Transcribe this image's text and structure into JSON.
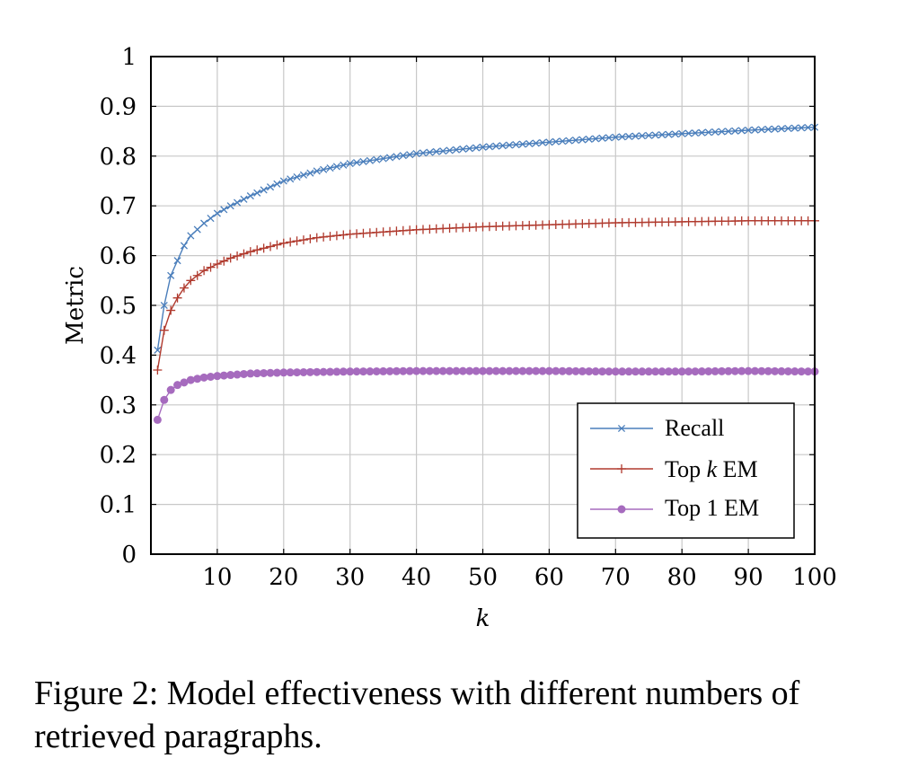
{
  "chart_data": {
    "type": "line",
    "title": "",
    "xlabel": "k",
    "ylabel": "Metric",
    "xlim": [
      0,
      100
    ],
    "ylim": [
      0,
      1
    ],
    "xticks": [
      "10",
      "20",
      "30",
      "40",
      "50",
      "60",
      "70",
      "80",
      "90",
      "100"
    ],
    "yticks": [
      "0",
      "0.1",
      "0.2",
      "0.3",
      "0.4",
      "0.5",
      "0.6",
      "0.7",
      "0.8",
      "0.9",
      "1"
    ],
    "grid": true,
    "legend_position": "bottom-right",
    "series": [
      {
        "name": "Recall",
        "color": "#4a7ebb",
        "marker": "x",
        "x": [
          1,
          2,
          3,
          4,
          5,
          6,
          8,
          10,
          12,
          15,
          20,
          25,
          30,
          40,
          50,
          60,
          70,
          80,
          90,
          100
        ],
        "values": [
          0.41,
          0.5,
          0.56,
          0.59,
          0.62,
          0.64,
          0.665,
          0.685,
          0.7,
          0.72,
          0.75,
          0.77,
          0.785,
          0.805,
          0.818,
          0.828,
          0.838,
          0.845,
          0.852,
          0.858
        ]
      },
      {
        "name": "Top k EM",
        "color": "#b03a2e",
        "marker": "+",
        "x": [
          1,
          2,
          3,
          4,
          5,
          6,
          8,
          10,
          12,
          15,
          20,
          25,
          30,
          40,
          50,
          60,
          70,
          80,
          90,
          100
        ],
        "values": [
          0.37,
          0.45,
          0.49,
          0.515,
          0.535,
          0.55,
          0.57,
          0.583,
          0.595,
          0.608,
          0.625,
          0.636,
          0.643,
          0.652,
          0.658,
          0.662,
          0.666,
          0.668,
          0.67,
          0.67
        ]
      },
      {
        "name": "Top 1 EM",
        "color": "#a66bbe",
        "marker": "circle",
        "x": [
          1,
          2,
          3,
          4,
          5,
          6,
          8,
          10,
          12,
          15,
          20,
          30,
          40,
          50,
          60,
          70,
          80,
          90,
          100
        ],
        "values": [
          0.27,
          0.31,
          0.33,
          0.34,
          0.345,
          0.35,
          0.355,
          0.358,
          0.36,
          0.363,
          0.365,
          0.367,
          0.368,
          0.368,
          0.368,
          0.367,
          0.367,
          0.368,
          0.367
        ]
      }
    ]
  },
  "legend": {
    "recall": "Recall",
    "topk_pre": "Top ",
    "topk_k": "k",
    "topk_post": " EM",
    "top1": "Top 1 EM"
  },
  "caption": "Figure 2: Model effectiveness with different numbers of retrieved paragraphs."
}
